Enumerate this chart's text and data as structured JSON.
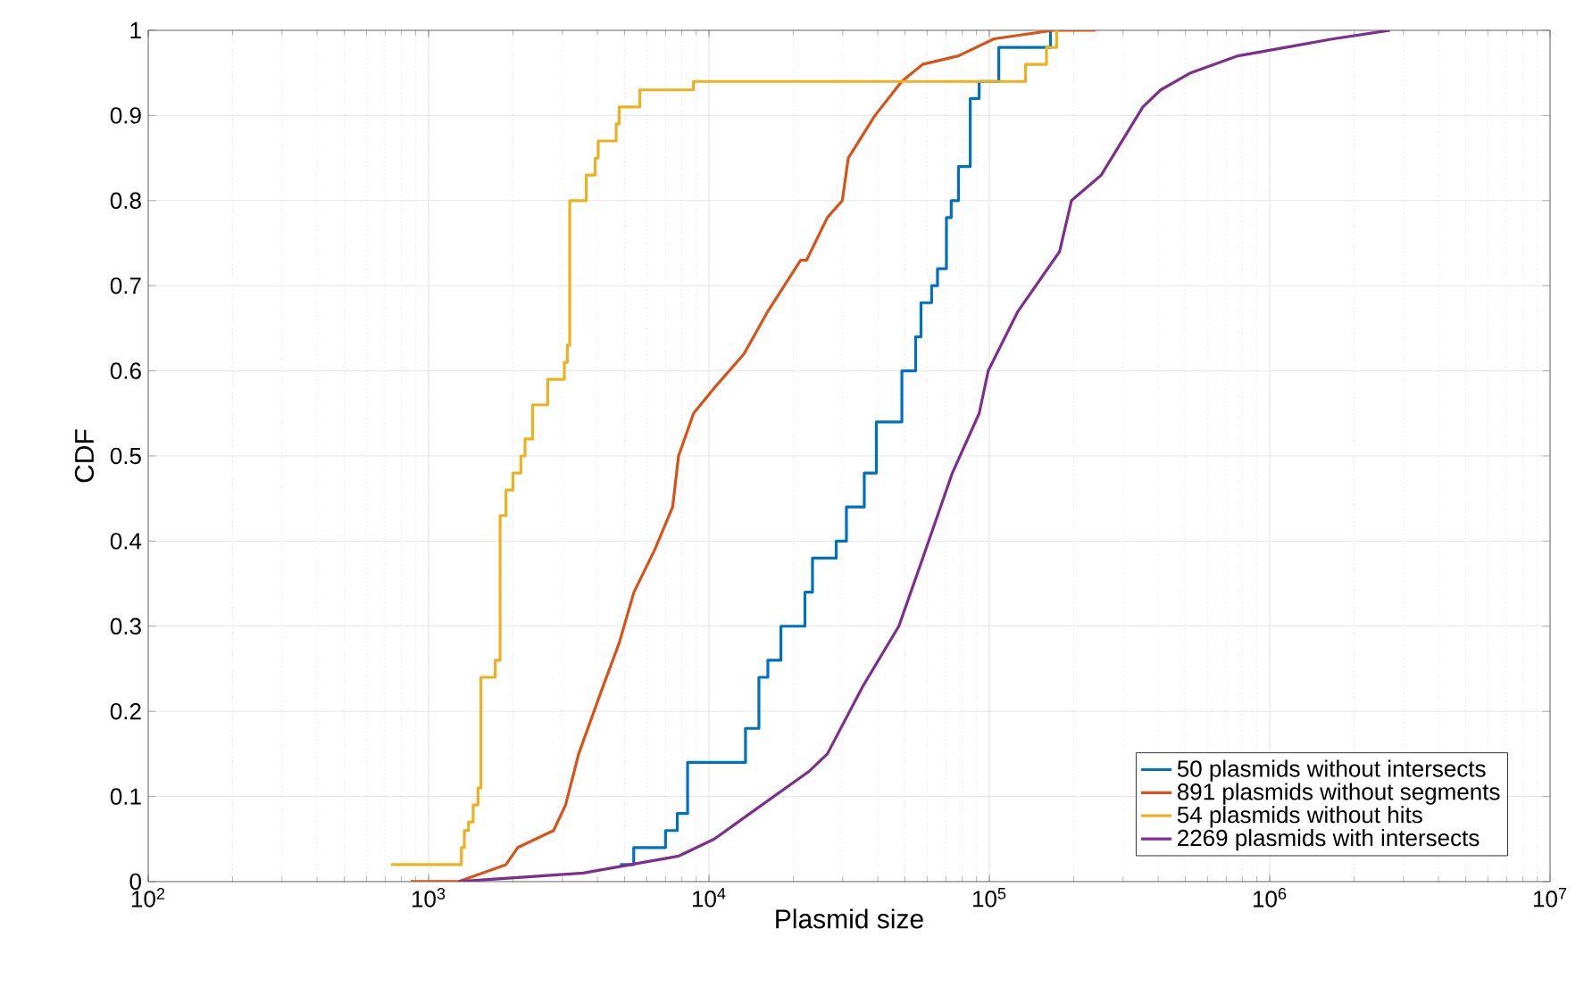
{
  "chart_data": {
    "type": "line",
    "xlabel": "Plasmid size",
    "ylabel": "CDF",
    "log": "x",
    "grid": true,
    "legend": "bottom right",
    "xlim": [
      100,
      10000000
    ],
    "ylim": [
      0,
      1
    ],
    "xticks": [
      {
        "value": 100,
        "label": "10$^{2}$"
      },
      {
        "value": 1000,
        "label": "10$^{3}$"
      },
      {
        "value": 10000,
        "label": "10$^{4}$"
      },
      {
        "value": 100000,
        "label": "10$^{5}$"
      },
      {
        "value": 1000000,
        "label": "10$^{6}$"
      },
      {
        "value": 10000000,
        "label": "10$^{7}$"
      }
    ],
    "yticks": [
      0,
      0.1,
      0.2,
      0.3,
      0.4,
      0.5,
      0.6,
      0.7,
      0.8,
      0.9,
      1
    ],
    "series": [
      {
        "name": "50 plasmids without intersects",
        "type": "step",
        "color": "#0072bd",
        "x": [
          4820,
          5390,
          7000,
          7710,
          8390,
          13500,
          15070,
          16220,
          18060,
          21990,
          23400,
          28440,
          30920,
          35800,
          39530,
          48760,
          54600,
          57040,
          62250,
          65330,
          70310,
          73120,
          77600,
          85500,
          92000,
          108100,
          165200
        ],
        "values": [
          0.02,
          0.04,
          0.06,
          0.08,
          0.14,
          0.18,
          0.24,
          0.26,
          0.3,
          0.34,
          0.38,
          0.4,
          0.44,
          0.48,
          0.54,
          0.6,
          0.64,
          0.68,
          0.7,
          0.72,
          0.78,
          0.8,
          0.84,
          0.92,
          0.94,
          0.98,
          1
        ]
      },
      {
        "name": "891 plasmids without segments",
        "type": "line",
        "color": "#d95319",
        "x": [
          863,
          1277,
          1888,
          2080,
          2790,
          3080,
          3430,
          4090,
          4780,
          5400,
          6410,
          7420,
          7790,
          8810,
          10450,
          13340,
          16220,
          21230,
          22290,
          26430,
          29900,
          31400,
          39100,
          48700,
          57800,
          77600,
          104000,
          169000,
          239000
        ],
        "values": [
          0,
          0,
          0.02,
          0.04,
          0.06,
          0.09,
          0.15,
          0.22,
          0.28,
          0.34,
          0.39,
          0.44,
          0.5,
          0.55,
          0.58,
          0.62,
          0.67,
          0.73,
          0.73,
          0.78,
          0.8,
          0.85,
          0.9,
          0.94,
          0.96,
          0.97,
          0.99,
          1,
          1
        ]
      },
      {
        "name": "54 plasmids without hits",
        "type": "step",
        "color": "#edb120",
        "x": [
          735,
          1309,
          1341,
          1388,
          1442,
          1500,
          1537,
          1729,
          1799,
          1888,
          2000,
          2133,
          2207,
          2350,
          2659,
          3049,
          3124,
          3187,
          3651,
          3927,
          4027,
          4665,
          4783,
          5667,
          8805,
          134600,
          159900,
          173800
        ],
        "values": [
          0.02,
          0.04,
          0.06,
          0.07,
          0.09,
          0.11,
          0.24,
          0.26,
          0.43,
          0.46,
          0.48,
          0.5,
          0.52,
          0.56,
          0.59,
          0.61,
          0.63,
          0.8,
          0.83,
          0.85,
          0.87,
          0.89,
          0.91,
          0.93,
          0.94,
          0.96,
          0.98,
          1
        ]
      },
      {
        "name": "2269 plasmids with intersects",
        "type": "line",
        "color": "#7e2f8e",
        "x": [
          1277,
          3560,
          7790,
          10450,
          14000,
          22840,
          26430,
          35460,
          47560,
          59300,
          73800,
          92000,
          99100,
          126500,
          178000,
          196300,
          250700,
          352900,
          408500,
          522000,
          771000,
          1140000,
          1687000,
          2685000
        ],
        "values": [
          0,
          0.01,
          0.03,
          0.05,
          0.08,
          0.13,
          0.15,
          0.23,
          0.3,
          0.39,
          0.48,
          0.55,
          0.6,
          0.67,
          0.74,
          0.8,
          0.83,
          0.91,
          0.93,
          0.95,
          0.97,
          0.98,
          0.99,
          1
        ]
      }
    ]
  }
}
